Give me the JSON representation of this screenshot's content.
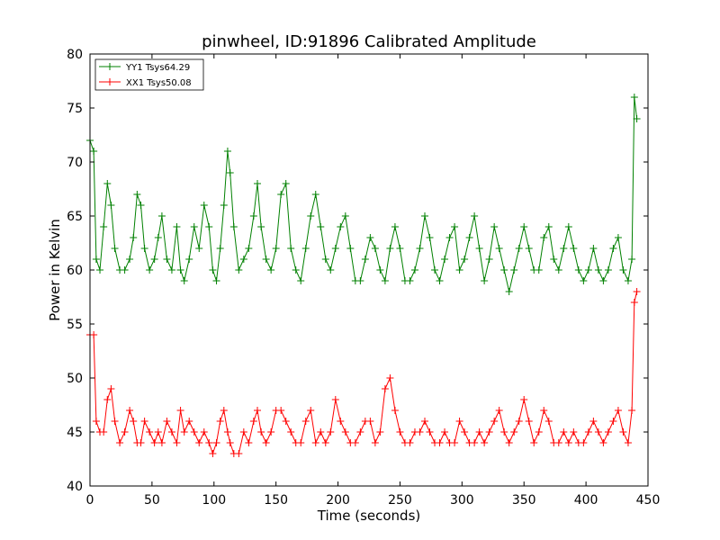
{
  "chart_data": {
    "type": "line",
    "title": "pinwheel, ID:91896 Calibrated Amplitude",
    "xlabel": "Time (seconds)",
    "ylabel": "Power in Kelvin",
    "xlim": [
      0,
      450
    ],
    "ylim": [
      40,
      80
    ],
    "xticks": [
      0,
      50,
      100,
      150,
      200,
      250,
      300,
      350,
      400,
      450
    ],
    "yticks": [
      40,
      45,
      50,
      55,
      60,
      65,
      70,
      75,
      80
    ],
    "grid": false,
    "legend_position": "top-left",
    "marker": "+",
    "series": [
      {
        "name": "YY1 Tsys64.29",
        "color": "#008000",
        "x": [
          0,
          3,
          5,
          8,
          11,
          14,
          17,
          20,
          24,
          28,
          32,
          35,
          38,
          41,
          44,
          48,
          52,
          55,
          58,
          62,
          66,
          70,
          73,
          76,
          80,
          84,
          88,
          92,
          96,
          99,
          102,
          105,
          108,
          111,
          113,
          116,
          120,
          124,
          128,
          132,
          135,
          138,
          142,
          146,
          150,
          154,
          158,
          162,
          166,
          170,
          174,
          178,
          182,
          186,
          190,
          194,
          198,
          202,
          206,
          210,
          214,
          218,
          222,
          226,
          230,
          234,
          238,
          242,
          246,
          250,
          254,
          258,
          262,
          266,
          270,
          274,
          278,
          282,
          286,
          290,
          294,
          298,
          302,
          306,
          310,
          314,
          318,
          322,
          326,
          330,
          334,
          338,
          342,
          346,
          350,
          354,
          358,
          362,
          366,
          370,
          374,
          378,
          382,
          386,
          390,
          394,
          398,
          402,
          406,
          410,
          414,
          418,
          422,
          426,
          430,
          434,
          437,
          439,
          441
        ],
        "y": [
          72,
          71,
          61,
          60,
          64,
          68,
          66,
          62,
          60,
          60,
          61,
          63,
          67,
          66,
          62,
          60,
          61,
          63,
          65,
          61,
          60,
          64,
          60,
          59,
          61,
          64,
          62,
          66,
          64,
          60,
          59,
          62,
          66,
          71,
          69,
          64,
          60,
          61,
          62,
          65,
          68,
          64,
          61,
          60,
          62,
          67,
          68,
          62,
          60,
          59,
          62,
          65,
          67,
          64,
          61,
          60,
          62,
          64,
          65,
          62,
          59,
          59,
          61,
          63,
          62,
          60,
          59,
          62,
          64,
          62,
          59,
          59,
          60,
          62,
          65,
          63,
          60,
          59,
          61,
          63,
          64,
          60,
          61,
          63,
          65,
          62,
          59,
          61,
          64,
          62,
          60,
          58,
          60,
          62,
          64,
          62,
          60,
          60,
          63,
          64,
          61,
          60,
          62,
          64,
          62,
          60,
          59,
          60,
          62,
          60,
          59,
          60,
          62,
          63,
          60,
          59,
          61,
          76,
          74
        ]
      },
      {
        "name": "XX1 Tsys50.08",
        "color": "#ff0000",
        "x": [
          0,
          3,
          5,
          8,
          11,
          14,
          17,
          20,
          24,
          28,
          32,
          35,
          38,
          41,
          44,
          48,
          52,
          55,
          58,
          62,
          66,
          70,
          73,
          76,
          80,
          84,
          88,
          92,
          96,
          99,
          102,
          105,
          108,
          111,
          113,
          116,
          120,
          124,
          128,
          132,
          135,
          138,
          142,
          146,
          150,
          154,
          158,
          162,
          166,
          170,
          174,
          178,
          182,
          186,
          190,
          194,
          198,
          202,
          206,
          210,
          214,
          218,
          222,
          226,
          230,
          234,
          238,
          242,
          246,
          250,
          254,
          258,
          262,
          266,
          270,
          274,
          278,
          282,
          286,
          290,
          294,
          298,
          302,
          306,
          310,
          314,
          318,
          322,
          326,
          330,
          334,
          338,
          342,
          346,
          350,
          354,
          358,
          362,
          366,
          370,
          374,
          378,
          382,
          386,
          390,
          394,
          398,
          402,
          406,
          410,
          414,
          418,
          422,
          426,
          430,
          434,
          437,
          439,
          441
        ],
        "y": [
          54,
          54,
          46,
          45,
          45,
          48,
          49,
          46,
          44,
          45,
          47,
          46,
          44,
          44,
          46,
          45,
          44,
          45,
          44,
          46,
          45,
          44,
          47,
          45,
          46,
          45,
          44,
          45,
          44,
          43,
          44,
          46,
          47,
          45,
          44,
          43,
          43,
          45,
          44,
          46,
          47,
          45,
          44,
          45,
          47,
          47,
          46,
          45,
          44,
          44,
          46,
          47,
          44,
          45,
          44,
          45,
          48,
          46,
          45,
          44,
          44,
          45,
          46,
          46,
          44,
          45,
          49,
          50,
          47,
          45,
          44,
          44,
          45,
          45,
          46,
          45,
          44,
          44,
          45,
          44,
          44,
          46,
          45,
          44,
          44,
          45,
          44,
          45,
          46,
          47,
          45,
          44,
          45,
          46,
          48,
          46,
          44,
          45,
          47,
          46,
          44,
          44,
          45,
          44,
          45,
          44,
          44,
          45,
          46,
          45,
          44,
          45,
          46,
          47,
          45,
          44,
          47,
          57,
          58
        ]
      }
    ]
  }
}
